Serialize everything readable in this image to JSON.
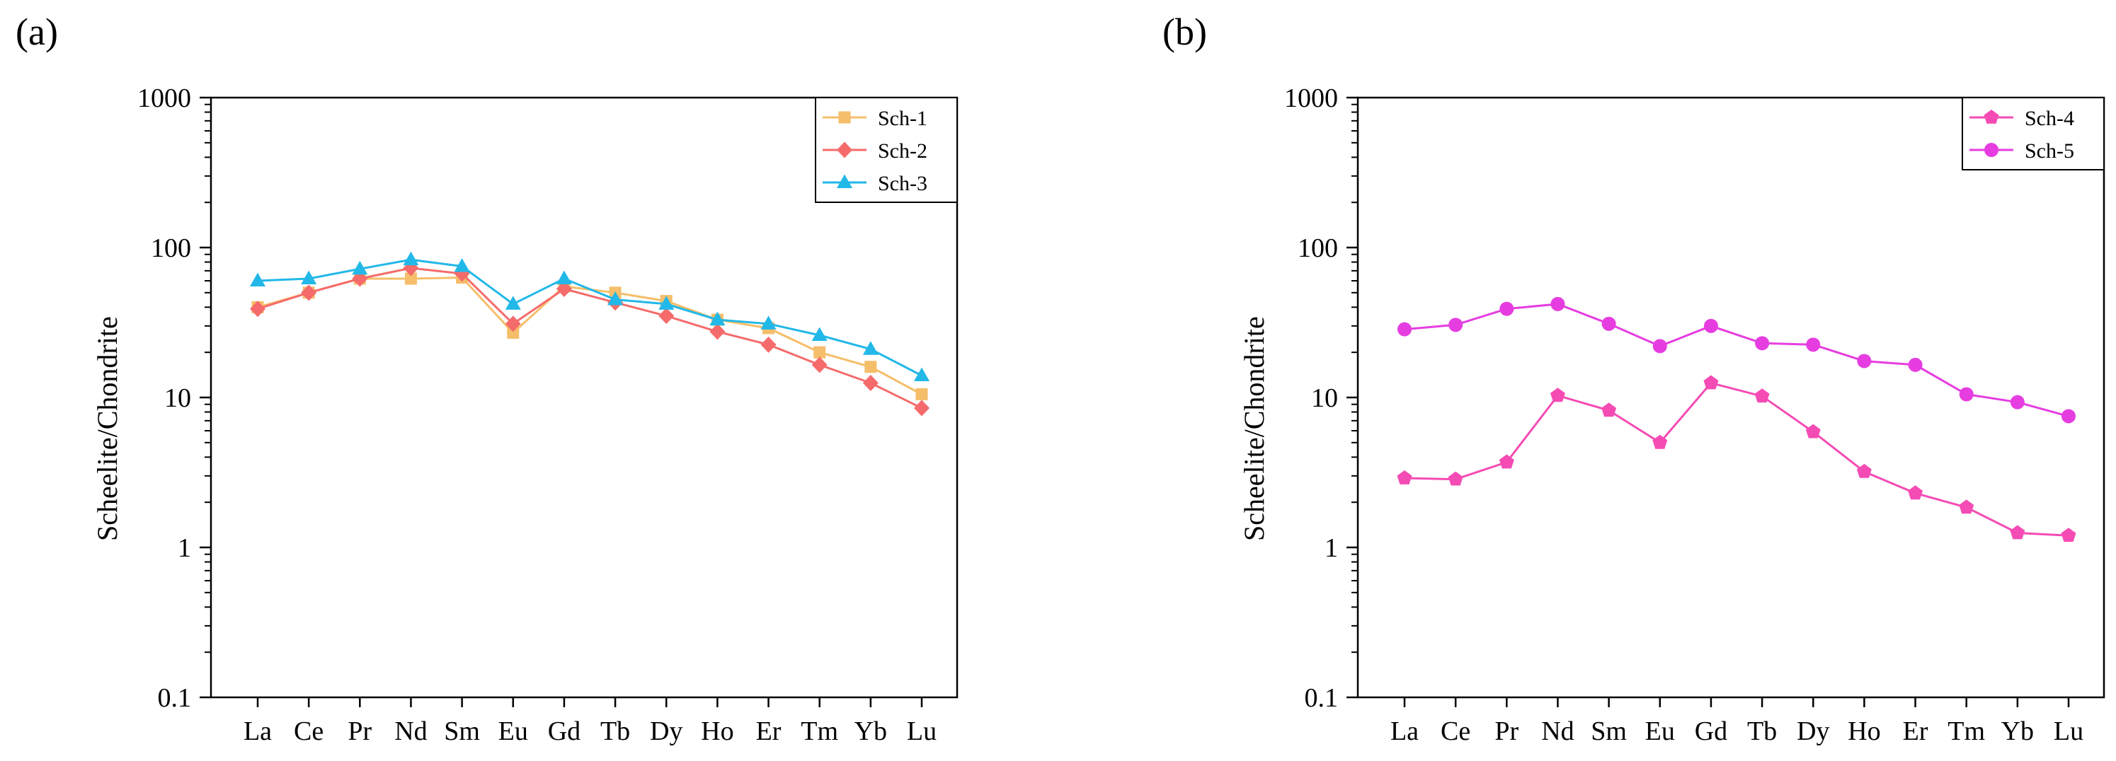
{
  "chart_data": [
    {
      "type": "line",
      "panel_label": "(a)",
      "title": "",
      "xlabel": "",
      "ylabel": "Scheelite/Chondrite",
      "yscale": "log",
      "ylim": [
        0.1,
        1000
      ],
      "yticks": [
        0.1,
        1,
        10,
        100,
        1000
      ],
      "ytick_labels": [
        "0.1",
        "1",
        "10",
        "100",
        "1000"
      ],
      "categories": [
        "La",
        "Ce",
        "Pr",
        "Nd",
        "Sm",
        "Eu",
        "Gd",
        "Tb",
        "Dy",
        "Ho",
        "Er",
        "Tm",
        "Yb",
        "Lu"
      ],
      "legend_position": "top-right",
      "series": [
        {
          "name": "Sch-1",
          "color": "#F5BE6A",
          "marker": "square",
          "values": [
            40,
            50,
            62,
            62,
            63,
            27,
            55,
            50,
            44,
            33,
            29,
            20,
            16,
            10.5
          ]
        },
        {
          "name": "Sch-2",
          "color": "#F56B6B",
          "marker": "diamond",
          "values": [
            39,
            50,
            62,
            73,
            67,
            31,
            53,
            43,
            35,
            27.5,
            22.5,
            16.5,
            12.5,
            8.5
          ]
        },
        {
          "name": "Sch-3",
          "color": "#22B8E8",
          "marker": "triangle",
          "values": [
            60,
            62,
            72,
            83,
            75,
            42,
            62,
            45,
            42,
            33,
            31,
            26,
            21,
            14
          ]
        }
      ]
    },
    {
      "type": "line",
      "panel_label": "(b)",
      "title": "",
      "xlabel": "",
      "ylabel": "Scheelite/Chondrite",
      "yscale": "log",
      "ylim": [
        0.1,
        1000
      ],
      "yticks": [
        0.1,
        1,
        10,
        100,
        1000
      ],
      "ytick_labels": [
        "0.1",
        "1",
        "10",
        "100",
        "1000"
      ],
      "categories": [
        "La",
        "Ce",
        "Pr",
        "Nd",
        "Sm",
        "Eu",
        "Gd",
        "Tb",
        "Dy",
        "Ho",
        "Er",
        "Tm",
        "Yb",
        "Lu"
      ],
      "legend_position": "top-right",
      "series": [
        {
          "name": "Sch-4",
          "color": "#F54BB4",
          "marker": "pentagon",
          "values": [
            2.9,
            2.85,
            3.7,
            10.3,
            8.2,
            5.0,
            12.5,
            10.2,
            5.9,
            3.2,
            2.3,
            1.85,
            1.25,
            1.2
          ]
        },
        {
          "name": "Sch-5",
          "color": "#E63DE0",
          "marker": "circle",
          "values": [
            28.5,
            30.5,
            39,
            42,
            31,
            22,
            30,
            23,
            22.5,
            17.5,
            16.5,
            10.5,
            9.3,
            7.5
          ]
        }
      ]
    }
  ]
}
